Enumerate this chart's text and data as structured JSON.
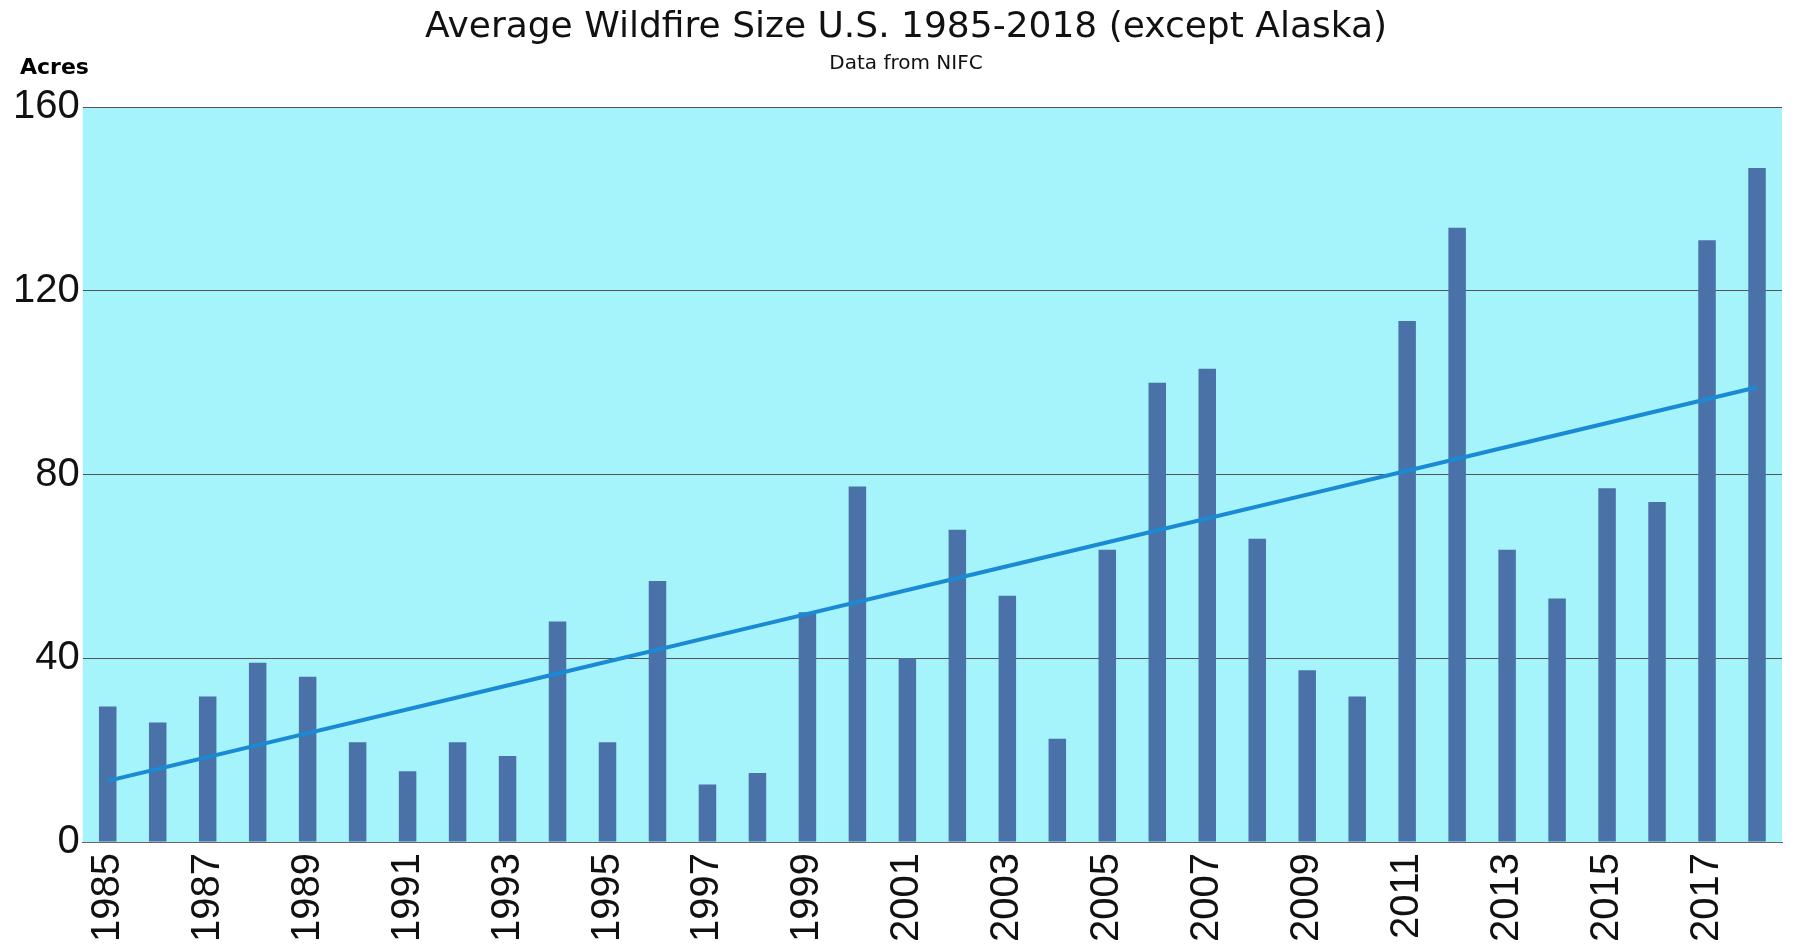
{
  "chart_data": {
    "type": "bar",
    "title": "Average Wildfire Size U.S. 1985-2018 (except Alaska)",
    "subtitle": "Data from NIFC",
    "ylabel": "Acres",
    "categories": [
      "1985",
      null,
      "1987",
      null,
      "1989",
      null,
      "1991",
      null,
      "1993",
      null,
      "1995",
      null,
      "1997",
      null,
      "1999",
      null,
      "2001",
      null,
      "2003",
      null,
      "2005",
      null,
      "2007",
      null,
      "2009",
      null,
      "2011",
      null,
      "2013",
      null,
      "2015",
      null,
      "2017",
      null
    ],
    "series": [
      {
        "color": "#4a72a8",
        "values": [
          29.5,
          26,
          31.7,
          39,
          36,
          21.7,
          15.4,
          21.7,
          18.7,
          48,
          21.7,
          56.8,
          12.5,
          15,
          50,
          77.4,
          40,
          68,
          53.6,
          22.5,
          63.6,
          100,
          103,
          66,
          37.4,
          31.7,
          113.4,
          133.7,
          63.6,
          53,
          77,
          74,
          131,
          146.7
        ]
      },
      {
        "type": "line",
        "color": "#1a8ad4",
        "values": [
          13.3,
          null,
          null,
          null,
          null,
          null,
          null,
          null,
          null,
          null,
          null,
          null,
          null,
          null,
          null,
          null,
          null,
          null,
          null,
          null,
          null,
          null,
          null,
          null,
          null,
          null,
          null,
          null,
          null,
          null,
          null,
          null,
          null,
          99
        ]
      }
    ],
    "ylim": [
      0,
      160
    ],
    "yticks": [
      0,
      40,
      80,
      120,
      160
    ],
    "grid": "y",
    "legend": false,
    "marker": "none"
  }
}
